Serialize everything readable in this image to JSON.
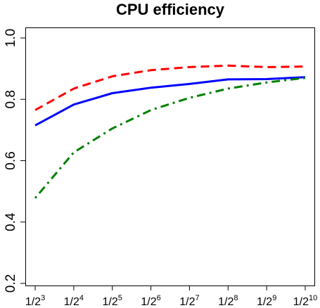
{
  "chart_data": {
    "type": "line",
    "title": "CPU efficiency",
    "xlabel": "",
    "ylabel": "",
    "x": [
      3,
      4,
      5,
      6,
      7,
      8,
      9,
      10
    ],
    "x_tick_labels": [
      {
        "base": "1/2",
        "exp": "3"
      },
      {
        "base": "1/2",
        "exp": "4"
      },
      {
        "base": "1/2",
        "exp": "5"
      },
      {
        "base": "1/2",
        "exp": "6"
      },
      {
        "base": "1/2",
        "exp": "7"
      },
      {
        "base": "1/2",
        "exp": "8"
      },
      {
        "base": "1/2",
        "exp": "9"
      },
      {
        "base": "1/2",
        "exp": "10"
      }
    ],
    "ylim": [
      0.2,
      1.0
    ],
    "yticks": [
      "0.2",
      "0.4",
      "0.6",
      "0.8",
      "1.0"
    ],
    "grid": false,
    "series": [
      {
        "color": "#ff0000",
        "dash": "dashed",
        "values": [
          0.765,
          0.835,
          0.875,
          0.895,
          0.905,
          0.91,
          0.905,
          0.907
        ]
      },
      {
        "color": "#0000ff",
        "dash": "solid",
        "values": [
          0.715,
          0.783,
          0.82,
          0.838,
          0.85,
          0.865,
          0.866,
          0.872
        ]
      },
      {
        "color": "#008000",
        "dash": "dotdash",
        "values": [
          0.478,
          0.627,
          0.705,
          0.765,
          0.805,
          0.835,
          0.855,
          0.87
        ]
      }
    ]
  }
}
